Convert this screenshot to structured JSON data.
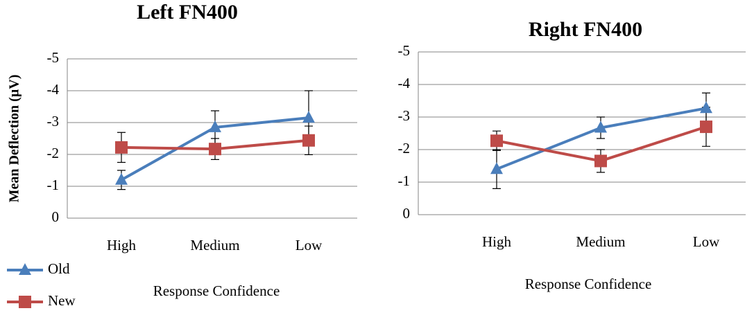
{
  "chart_data": [
    {
      "type": "line",
      "title": "Left FN400",
      "y_label": "Mean Deflection (µV)",
      "x_label": "Response Confidence",
      "categories": [
        "High",
        "Medium",
        "Low"
      ],
      "ylim": [
        0,
        -5
      ],
      "yticks": [
        0,
        -1,
        -2,
        -3,
        -4,
        -5
      ],
      "grid": true,
      "legend": "bottom-left",
      "series": [
        {
          "name": "Old",
          "color": "#4a7ebb",
          "marker": "triangle",
          "values": [
            -1.2,
            -2.85,
            -3.15
          ],
          "errors": [
            0.3,
            0.52,
            0.85
          ]
        },
        {
          "name": "New",
          "color": "#be4b48",
          "marker": "square",
          "values": [
            -2.22,
            -2.17,
            -2.44
          ],
          "errors": [
            0.47,
            0.33,
            0.45
          ]
        }
      ]
    },
    {
      "type": "line",
      "title": "Right FN400",
      "x_label": "Response Confidence",
      "categories": [
        "High",
        "Medium",
        "Low"
      ],
      "ylim": [
        0,
        -5
      ],
      "yticks": [
        0,
        -1,
        -2,
        -3,
        -4,
        -5
      ],
      "grid": true,
      "series": [
        {
          "color": "#4a7ebb",
          "marker": "triangle",
          "values": [
            -1.4,
            -2.67,
            -3.27
          ],
          "errors": [
            0.6,
            0.33,
            0.47
          ]
        },
        {
          "color": "#be4b48",
          "marker": "square",
          "values": [
            -2.27,
            -1.65,
            -2.7
          ],
          "errors": [
            0.3,
            0.35,
            0.6
          ]
        }
      ]
    }
  ]
}
